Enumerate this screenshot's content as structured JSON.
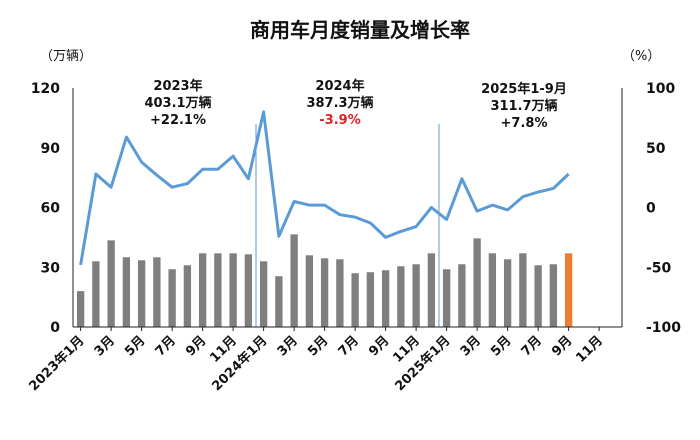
{
  "chart_data": {
    "type": "bar+line",
    "title": "商用车月度销量及增长率",
    "left_axis": {
      "unit_label": "（万辆）",
      "ylim": [
        0,
        120
      ],
      "ticks": [
        "0",
        "30",
        "60",
        "90",
        "120"
      ]
    },
    "right_axis": {
      "unit_label": "（%）",
      "ylim": [
        -100,
        100
      ],
      "ticks": [
        "-100",
        "-50",
        "0",
        "50",
        "100"
      ]
    },
    "x_tick_labels": [
      "2023年1月",
      "3月",
      "5月",
      "7月",
      "9月",
      "11月",
      "2024年1月",
      "3月",
      "5月",
      "7月",
      "9月",
      "11月",
      "2025年1月",
      "3月",
      "5月",
      "7月",
      "9月",
      "11月"
    ],
    "months": [
      "2023-01",
      "2023-02",
      "2023-03",
      "2023-04",
      "2023-05",
      "2023-06",
      "2023-07",
      "2023-08",
      "2023-09",
      "2023-10",
      "2023-11",
      "2023-12",
      "2024-01",
      "2024-02",
      "2024-03",
      "2024-04",
      "2024-05",
      "2024-06",
      "2024-07",
      "2024-08",
      "2024-09",
      "2024-10",
      "2024-11",
      "2024-12",
      "2025-01",
      "2025-02",
      "2025-03",
      "2025-04",
      "2025-05",
      "2025-06",
      "2025-07",
      "2025-08",
      "2025-09",
      "2025-10",
      "2025-11",
      "2025-12"
    ],
    "sales": [
      18,
      33,
      43.5,
      35,
      33.5,
      35,
      29,
      31,
      37,
      37,
      37,
      36.5,
      33,
      25.5,
      46.5,
      36,
      34.5,
      34,
      27,
      27.5,
      28.5,
      30.5,
      31.5,
      37,
      29,
      31.5,
      44.5,
      37,
      34,
      37,
      31,
      31.5,
      37,
      null,
      null,
      null
    ],
    "growth": [
      -48,
      28,
      17,
      59,
      38,
      27,
      17,
      20,
      32,
      32,
      43,
      24,
      80,
      -24,
      5,
      2,
      2,
      -6,
      -8,
      -13,
      -25,
      -20,
      -16,
      0,
      -10,
      24,
      -3,
      2,
      -2,
      9,
      13,
      16,
      28,
      null,
      null,
      null
    ],
    "colors": {
      "bars": "#7f7f7f",
      "highlight_bar": "#ed7d31",
      "line": "#5b9bd5",
      "axis": "#222222",
      "divider": "#5b9bd5"
    },
    "highlight_index": 32,
    "annotations": [
      {
        "year": "2023年",
        "total": "403.1万辆",
        "growth": "+22.1%",
        "growth_color": "#111111"
      },
      {
        "year": "2024年",
        "total": "387.3万辆",
        "growth": "-3.9%",
        "growth_color": "#e02020"
      },
      {
        "year": "2025年1-9月",
        "total": "311.7万辆",
        "growth": "+7.8%",
        "growth_color": "#111111"
      }
    ]
  }
}
